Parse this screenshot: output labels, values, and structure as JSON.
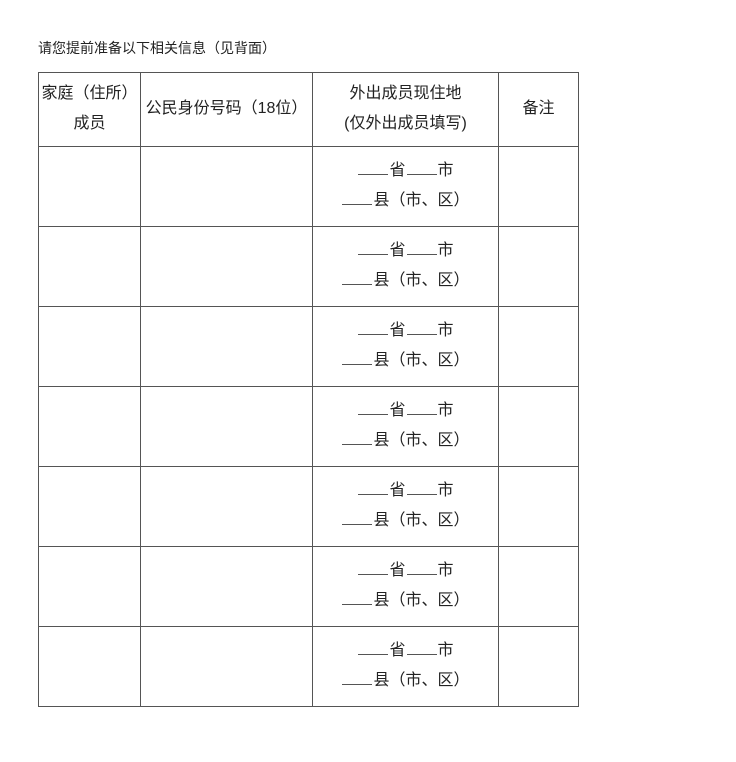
{
  "instruction": "请您提前准备以下相关信息（见背面）",
  "headers": {
    "col1": "家庭（住所）成员",
    "col2": "公民身份号码（18位）",
    "col3_line1": "外出成员现住地",
    "col3_line2": "(仅外出成员填写)",
    "col4": "备注"
  },
  "row_count": 7,
  "address_template": {
    "province": "省",
    "city": "市",
    "county": "县",
    "districts": "（市、区）"
  }
}
